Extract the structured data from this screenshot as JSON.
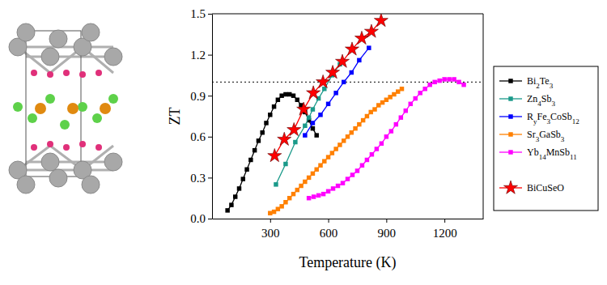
{
  "chart_data": {
    "type": "line",
    "x_label": "Temperature (K)",
    "y_label": "ZT",
    "xlim": [
      0,
      1400
    ],
    "xticks": [
      300,
      600,
      900,
      1200
    ],
    "ylim": [
      0,
      1.5
    ],
    "yticks": [
      {
        "value": 0,
        "label": "0.0"
      },
      0.3,
      0.6,
      0.9,
      1.2,
      1.5
    ],
    "reference_line": 1,
    "legend": "right",
    "series": [
      {
        "name": "Bi2Te3",
        "color": "#000000",
        "marker": "square",
        "line_style": "solid",
        "x": [
          80,
          100,
          120,
          140,
          160,
          180,
          200,
          220,
          240,
          260,
          280,
          300,
          320,
          340,
          360,
          380,
          400,
          420,
          440,
          460,
          480,
          500,
          520,
          540
        ],
        "values": [
          0.06,
          0.1,
          0.16,
          0.22,
          0.29,
          0.36,
          0.43,
          0.5,
          0.57,
          0.63,
          0.7,
          0.76,
          0.82,
          0.87,
          0.9,
          0.91,
          0.91,
          0.9,
          0.87,
          0.83,
          0.78,
          0.72,
          0.66,
          0.61
        ]
      },
      {
        "name": "Zn4Sb3",
        "color": "#1a9a8a",
        "marker": "square",
        "line_style": "solid",
        "x": [
          330,
          380,
          430,
          480,
          500,
          520,
          550,
          580,
          620,
          660
        ],
        "values": [
          0.25,
          0.4,
          0.56,
          0.68,
          0.74,
          0.8,
          0.88,
          0.95,
          1.05,
          1.13
        ]
      },
      {
        "name": "RyFe3CoSb12",
        "color": "#0000ff",
        "marker": "square",
        "line_style": "solid",
        "x": [
          480,
          520,
          560,
          600,
          640,
          680,
          720,
          760,
          810
        ],
        "values": [
          0.61,
          0.7,
          0.76,
          0.84,
          0.92,
          1.0,
          1.07,
          1.16,
          1.25
        ]
      },
      {
        "name": "Sr3GaSb3",
        "color": "#ff8000",
        "marker": "square",
        "line_style": "solid",
        "x": [
          300,
          320,
          340,
          360,
          380,
          400,
          420,
          440,
          460,
          480,
          500,
          520,
          540,
          560,
          580,
          600,
          620,
          640,
          660,
          680,
          700,
          720,
          740,
          760,
          780,
          800,
          820,
          840,
          860,
          880,
          900,
          920,
          940,
          960,
          980
        ],
        "values": [
          0.04,
          0.05,
          0.07,
          0.09,
          0.12,
          0.15,
          0.18,
          0.21,
          0.24,
          0.27,
          0.3,
          0.33,
          0.36,
          0.39,
          0.42,
          0.45,
          0.48,
          0.51,
          0.54,
          0.57,
          0.6,
          0.63,
          0.66,
          0.69,
          0.72,
          0.75,
          0.78,
          0.8,
          0.83,
          0.85,
          0.87,
          0.89,
          0.91,
          0.93,
          0.95
        ]
      },
      {
        "name": "Yb14MnSb11",
        "color": "#ff00ff",
        "marker": "square",
        "line_style": "solid",
        "x": [
          500,
          525,
          550,
          575,
          600,
          625,
          650,
          675,
          700,
          725,
          750,
          775,
          800,
          825,
          850,
          875,
          900,
          925,
          950,
          975,
          1000,
          1025,
          1050,
          1075,
          1100,
          1125,
          1150,
          1175,
          1200,
          1225,
          1250,
          1275,
          1300
        ],
        "values": [
          0.15,
          0.16,
          0.17,
          0.18,
          0.2,
          0.22,
          0.24,
          0.26,
          0.29,
          0.32,
          0.35,
          0.39,
          0.43,
          0.47,
          0.51,
          0.55,
          0.6,
          0.64,
          0.69,
          0.74,
          0.79,
          0.84,
          0.88,
          0.92,
          0.95,
          0.98,
          1.0,
          1.01,
          1.02,
          1.02,
          1.02,
          1.0,
          0.98
        ]
      },
      {
        "name": "BiCuSeO",
        "color": "#ff0000",
        "marker": "star",
        "line_style": "solid",
        "x": [
          323,
          373,
          423,
          473,
          523,
          573,
          623,
          673,
          723,
          773,
          823,
          873
        ],
        "values": [
          0.46,
          0.58,
          0.65,
          0.8,
          0.92,
          1.0,
          1.07,
          1.15,
          1.24,
          1.32,
          1.37,
          1.45
        ]
      }
    ]
  }
}
